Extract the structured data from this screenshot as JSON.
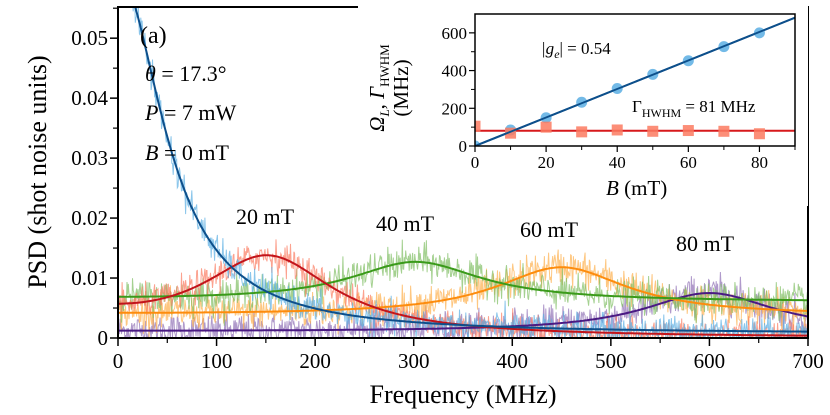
{
  "chart_data": {
    "type": "line",
    "panel_label": "(a)",
    "xlabel": "Frequency (MHz)",
    "ylabel": "PSD (shot noise units)",
    "xlim": [
      0,
      700
    ],
    "ylim": [
      0,
      0.0552
    ],
    "xticks": [
      0,
      100,
      200,
      300,
      400,
      500,
      600,
      700
    ],
    "xtick_labels": [
      "0",
      "100",
      "200",
      "300",
      "400",
      "500",
      "600",
      "700"
    ],
    "yticks": [
      0,
      0.01,
      0.02,
      0.03,
      0.04,
      0.05
    ],
    "ytick_labels": [
      "0",
      "0.01",
      "0.02",
      "0.03",
      "0.04",
      "0.05"
    ],
    "annotations": {
      "theta": "θ = 17.3°",
      "theta_sym": "θ",
      "theta_val": " = 17.3°",
      "power_sym": "P",
      "power_val": " = 7 mW",
      "field_sym": "B",
      "field_val": " = 0 mT"
    },
    "series": [
      {
        "name": "0 mT",
        "label": "",
        "center": 0,
        "peak": 0.06,
        "hwhm": 55,
        "baseline": 0.0,
        "shape": "lorentzian-decay",
        "raw_color": "#5aaee3",
        "fit_color": "#0d4f8b",
        "noise": 0.0012
      },
      {
        "name": "20 mT",
        "label": "20 mT",
        "center": 152,
        "peak": 0.0138,
        "hwhm": 81,
        "baseline": 0.0,
        "raw_color": "#fb7a60",
        "fit_color": "#c2141b",
        "noise": 0.0012
      },
      {
        "name": "40 mT",
        "label": "40 mT",
        "center": 302,
        "peak": 0.0127,
        "hwhm": 81,
        "baseline": 0.006,
        "raw_color": "#7fbe62",
        "fit_color": "#3a9a1a",
        "noise": 0.0013
      },
      {
        "name": "60 mT",
        "label": "60 mT",
        "center": 450,
        "peak": 0.0118,
        "hwhm": 81,
        "baseline": 0.0037,
        "raw_color": "#fdaf4c",
        "fit_color": "#fd8c0d",
        "noise": 0.0014
      },
      {
        "name": "80 mT",
        "label": "80 mT",
        "center": 600,
        "peak": 0.0075,
        "hwhm": 81,
        "baseline": 0.001,
        "raw_color": "#8e6fb5",
        "fit_color": "#4a1a83",
        "noise": 0.0014
      }
    ],
    "inset": {
      "type": "scatter",
      "xlabel_sym": "B",
      "xlabel_unit": " (mT)",
      "ylabel_line1": "Ω",
      "ylabel_sub1": "L",
      "ylabel_sep": ", ",
      "ylabel_sym2": "Γ",
      "ylabel_sub2": "HWHM",
      "ylabel_line2": "(MHz)",
      "xlim": [
        0,
        90
      ],
      "ylim": [
        0,
        700
      ],
      "xticks": [
        0,
        20,
        40,
        60,
        80
      ],
      "xtick_labels": [
        "0",
        "20",
        "40",
        "60",
        "80"
      ],
      "yticks": [
        0,
        200,
        400,
        600
      ],
      "ytick_labels": [
        "0",
        "200",
        "400",
        "600"
      ],
      "ge_label_pre": "|g",
      "ge_label_sub": "e",
      "ge_label_post": "| = 0.54",
      "gamma_label_sym": "Γ",
      "gamma_label_sub": "HWHM",
      "gamma_label_post": " = 81 MHz",
      "larmor": {
        "name": "Ω_L",
        "x": [
          0,
          10,
          20,
          30,
          40,
          50,
          60,
          70,
          80
        ],
        "y": [
          0,
          85,
          150,
          232,
          305,
          380,
          452,
          527,
          600
        ],
        "fit_slope": 7.56,
        "marker_color": "#5aaee3",
        "fit_color": "#0d4f8b"
      },
      "hwhm": {
        "name": "Γ_HWHM",
        "x": [
          0,
          10,
          20,
          30,
          40,
          50,
          60,
          70,
          80
        ],
        "y": [
          105,
          68,
          100,
          75,
          85,
          78,
          82,
          78,
          65
        ],
        "fit_value": 81,
        "marker_color": "#fb7a60",
        "fit_color": "#d7191c"
      }
    }
  }
}
